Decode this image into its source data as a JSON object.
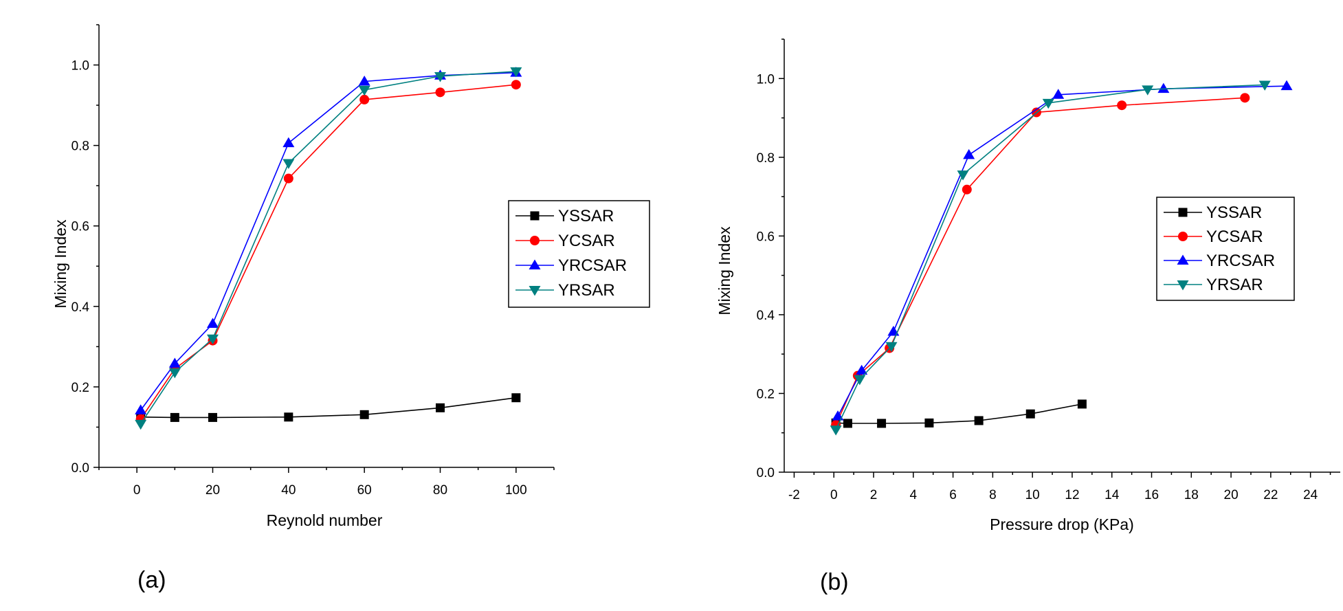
{
  "chart_data": [
    {
      "type": "line",
      "panel_label": "(a)",
      "title": "",
      "xlabel": "Reynold number",
      "ylabel": "Mixing Index",
      "xlim": [
        -10,
        110
      ],
      "ylim": [
        0,
        1.1
      ],
      "xticks": [
        "0",
        "20",
        "40",
        "60",
        "80",
        "100"
      ],
      "xtick_values": [
        0,
        20,
        40,
        60,
        80,
        100
      ],
      "yticks": [
        "0.0",
        "0.2",
        "0.4",
        "0.6",
        "0.8",
        "1.0"
      ],
      "ytick_values": [
        0,
        0.2,
        0.4,
        0.6,
        0.8,
        1.0
      ],
      "legend_position": "right-middle",
      "grid": false,
      "series": [
        {
          "name": "YSSAR",
          "color": "#000000",
          "marker": "square",
          "x": [
            1,
            10,
            20,
            40,
            60,
            80,
            100
          ],
          "y": [
            0.125,
            0.124,
            0.124,
            0.125,
            0.131,
            0.148,
            0.173
          ]
        },
        {
          "name": "YCSAR",
          "color": "#ff0000",
          "marker": "circle",
          "x": [
            1,
            10,
            20,
            40,
            60,
            80,
            100
          ],
          "y": [
            0.12,
            0.245,
            0.315,
            0.718,
            0.914,
            0.932,
            0.951
          ]
        },
        {
          "name": "YRCSAR",
          "color": "#0000ff",
          "marker": "triangle-up",
          "x": [
            1,
            10,
            20,
            40,
            60,
            80,
            100
          ],
          "y": [
            0.142,
            0.258,
            0.357,
            0.806,
            0.959,
            0.974,
            0.981
          ]
        },
        {
          "name": "YRSAR",
          "color": "#008080",
          "marker": "triangle-down",
          "x": [
            1,
            10,
            20,
            40,
            60,
            80,
            100
          ],
          "y": [
            0.108,
            0.236,
            0.32,
            0.756,
            0.938,
            0.972,
            0.984
          ]
        }
      ]
    },
    {
      "type": "line",
      "panel_label": "(b)",
      "title": "",
      "xlabel": "Pressure drop (KPa)",
      "ylabel": "Mixing Index",
      "xlim": [
        -2.5,
        25.5
      ],
      "ylim": [
        0,
        1.1
      ],
      "xticks": [
        "-2",
        "0",
        "2",
        "4",
        "6",
        "8",
        "10",
        "12",
        "14",
        "16",
        "18",
        "20",
        "22",
        "24"
      ],
      "xtick_values": [
        -2,
        0,
        2,
        4,
        6,
        8,
        10,
        12,
        14,
        16,
        18,
        20,
        22,
        24
      ],
      "yticks": [
        "0.0",
        "0.2",
        "0.4",
        "0.6",
        "0.8",
        "1.0"
      ],
      "ytick_values": [
        0,
        0.2,
        0.4,
        0.6,
        0.8,
        1.0
      ],
      "legend_position": "top-right",
      "grid": false,
      "series": [
        {
          "name": "YSSAR",
          "color": "#000000",
          "marker": "square",
          "x": [
            0.1,
            0.7,
            2.4,
            4.8,
            7.3,
            9.9,
            12.5
          ],
          "y": [
            0.125,
            0.124,
            0.124,
            0.125,
            0.131,
            0.148,
            0.173
          ]
        },
        {
          "name": "YCSAR",
          "color": "#ff0000",
          "marker": "circle",
          "x": [
            0.1,
            1.2,
            2.8,
            6.7,
            10.2,
            14.5,
            20.7
          ],
          "y": [
            0.12,
            0.245,
            0.315,
            0.718,
            0.914,
            0.932,
            0.951
          ]
        },
        {
          "name": "YRCSAR",
          "color": "#0000ff",
          "marker": "triangle-up",
          "x": [
            0.2,
            1.4,
            3.0,
            6.8,
            11.3,
            16.6,
            22.8
          ],
          "y": [
            0.142,
            0.258,
            0.357,
            0.806,
            0.959,
            0.974,
            0.981
          ]
        },
        {
          "name": "YRSAR",
          "color": "#008080",
          "marker": "triangle-down",
          "x": [
            0.1,
            1.3,
            2.9,
            6.5,
            10.8,
            15.8,
            21.7
          ],
          "y": [
            0.108,
            0.236,
            0.32,
            0.756,
            0.938,
            0.972,
            0.984
          ]
        }
      ]
    }
  ]
}
